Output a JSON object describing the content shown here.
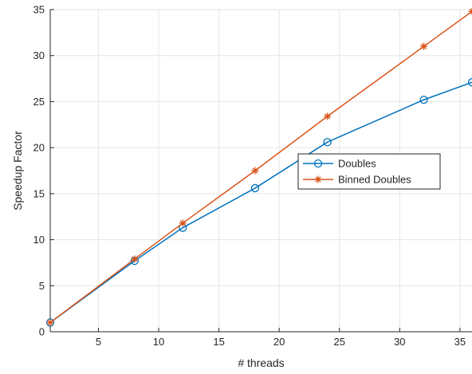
{
  "chart_data": {
    "type": "line",
    "title": "",
    "xlabel": "# threads",
    "ylabel": "Speedup Factor",
    "xlim": [
      1,
      36
    ],
    "ylim": [
      0,
      35
    ],
    "xticks": [
      5,
      10,
      15,
      20,
      25,
      30,
      35
    ],
    "yticks": [
      0,
      5,
      10,
      15,
      20,
      25,
      30,
      35
    ],
    "grid": true,
    "legend_position": "center-right",
    "series": [
      {
        "name": "Doubles",
        "color": "#0072BD",
        "marker": "circle",
        "x": [
          1,
          8,
          12,
          18,
          24,
          32,
          36
        ],
        "y": [
          1.0,
          7.7,
          11.3,
          15.6,
          20.6,
          25.2,
          27.1
        ]
      },
      {
        "name": "Binned Doubles",
        "color": "#D95319",
        "marker": "asterisk",
        "x": [
          1,
          8,
          12,
          18,
          24,
          32,
          36
        ],
        "y": [
          1.0,
          7.9,
          11.8,
          17.5,
          23.4,
          31.0,
          34.8
        ]
      }
    ]
  }
}
